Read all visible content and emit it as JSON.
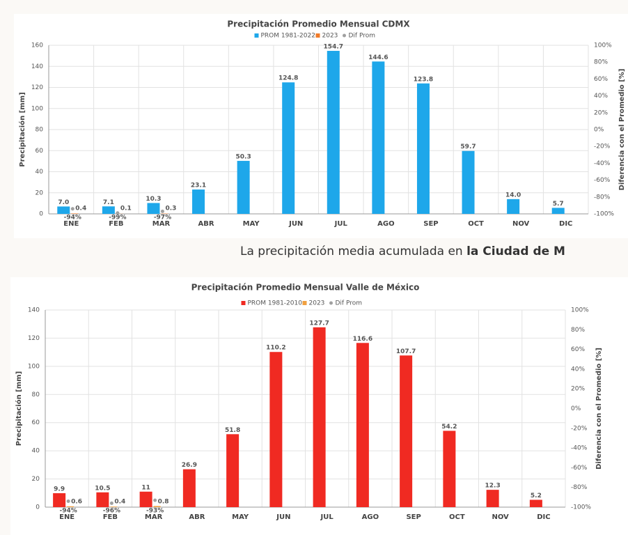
{
  "chart_data": [
    {
      "type": "bar",
      "title": "Precipitación Promedio Mensual CDMX",
      "ylabel": "Precipitación  [mm]",
      "y2label": "Diferencia con el Promedio [%]",
      "categories": [
        "ENE",
        "FEB",
        "MAR",
        "ABR",
        "MAY",
        "JUN",
        "JUL",
        "AGO",
        "SEP",
        "OCT",
        "NOV",
        "DIC"
      ],
      "series": [
        {
          "name": "PROM 1981-2022",
          "color": "#1ea7ea",
          "label_color": "#1ea7ea",
          "values": [
            7.0,
            7.1,
            10.3,
            23.1,
            50.3,
            124.8,
            154.7,
            144.6,
            123.8,
            59.7,
            14.0,
            5.7
          ],
          "value_labels": [
            "7.0",
            "7.1",
            "10.3",
            "23.1",
            "50.3",
            "124.8",
            "154.7",
            "144.6",
            "123.8",
            "59.7",
            "14.0",
            "5.7"
          ]
        },
        {
          "name": "2023",
          "color": "#f07b2a",
          "label_color": "#f06a2a",
          "values": [
            0.4,
            0.1,
            0.3,
            null,
            null,
            null,
            null,
            null,
            null,
            null,
            null,
            null
          ],
          "value_labels": [
            "0.4",
            "0.1",
            "0.3",
            null,
            null,
            null,
            null,
            null,
            null,
            null,
            null,
            null
          ]
        },
        {
          "name": "Dif Prom",
          "color": "#a0a0a0",
          "label_color": "#e8302a",
          "axis": "y2",
          "values": [
            -94,
            -99,
            -97,
            null,
            null,
            null,
            null,
            null,
            null,
            null,
            null,
            null
          ],
          "value_labels": [
            "-94%",
            "-99%",
            "-97%",
            null,
            null,
            null,
            null,
            null,
            null,
            null,
            null,
            null
          ]
        }
      ],
      "ylim": [
        0,
        160
      ],
      "yticks": [
        0,
        20,
        40,
        60,
        80,
        100,
        120,
        140,
        160
      ],
      "y2lim": [
        -100,
        100
      ],
      "y2ticks": [
        {
          "value": -100,
          "label": "-100%"
        },
        {
          "value": -80,
          "label": "-80%"
        },
        {
          "value": -60,
          "label": "-60%"
        },
        {
          "value": -40,
          "label": "-40%"
        },
        {
          "value": -20,
          "label": "-20%"
        },
        {
          "value": 0,
          "label": "0%"
        },
        {
          "value": 20,
          "label": "20%"
        },
        {
          "value": 40,
          "label": "40%"
        },
        {
          "value": 60,
          "label": "60%"
        },
        {
          "value": 80,
          "label": "80%"
        },
        {
          "value": 100,
          "label": "100%"
        }
      ],
      "grid": true
    },
    {
      "type": "bar",
      "title": "Precipitación Promedio Mensual Valle de México",
      "ylabel": "Precipitación  [mm]",
      "y2label": "Diferencia con el Promedio [%]",
      "categories": [
        "ENE",
        "FEB",
        "MAR",
        "ABR",
        "MAY",
        "JUN",
        "JUL",
        "AGO",
        "SEP",
        "OCT",
        "NOV",
        "DIC"
      ],
      "series": [
        {
          "name": "PROM 1981-2010",
          "color": "#f02a22",
          "label_color": "#e8201a",
          "values": [
            9.9,
            10.5,
            11,
            26.9,
            51.8,
            110.2,
            127.7,
            116.6,
            107.7,
            54.2,
            12.3,
            5.2
          ],
          "value_labels": [
            "9.9",
            "10.5",
            "11",
            "26.9",
            "51.8",
            "110.2",
            "127.7",
            "116.6",
            "107.7",
            "54.2",
            "12.3",
            "5.2"
          ]
        },
        {
          "name": "2023",
          "color": "#f0a040",
          "label_color": "#1f2fd0",
          "values": [
            0.6,
            0.4,
            0.8,
            null,
            null,
            null,
            null,
            null,
            null,
            null,
            null,
            null
          ],
          "value_labels": [
            "0.6",
            "0.4",
            "0.8",
            null,
            null,
            null,
            null,
            null,
            null,
            null,
            null,
            null
          ]
        },
        {
          "name": "Dif Prom",
          "color": "#a0a0a0",
          "label_color": "#e8302a",
          "axis": "y2",
          "values": [
            -94,
            -96,
            -93,
            null,
            null,
            null,
            null,
            null,
            null,
            null,
            null,
            null
          ],
          "value_labels": [
            "-94%",
            "-96%",
            "-93%",
            null,
            null,
            null,
            null,
            null,
            null,
            null,
            null,
            null
          ]
        }
      ],
      "ylim": [
        0,
        140
      ],
      "yticks": [
        0,
        20,
        40,
        60,
        80,
        100,
        120,
        140
      ],
      "y2lim": [
        -100,
        100
      ],
      "y2ticks": [
        {
          "value": -100,
          "label": "-100%"
        },
        {
          "value": -80,
          "label": "-80%"
        },
        {
          "value": -60,
          "label": "-60%"
        },
        {
          "value": -40,
          "label": "-40%"
        },
        {
          "value": -20,
          "label": "-20%"
        },
        {
          "value": 0,
          "label": "0%"
        },
        {
          "value": 20,
          "label": "20%"
        },
        {
          "value": 40,
          "label": "40%"
        },
        {
          "value": 60,
          "label": "60%"
        },
        {
          "value": 80,
          "label": "80%"
        },
        {
          "value": 100,
          "label": "100%"
        }
      ],
      "grid": true
    }
  ],
  "caption": {
    "text": "La precipitación media acumulada en ",
    "bold": "la Ciudad de M"
  }
}
